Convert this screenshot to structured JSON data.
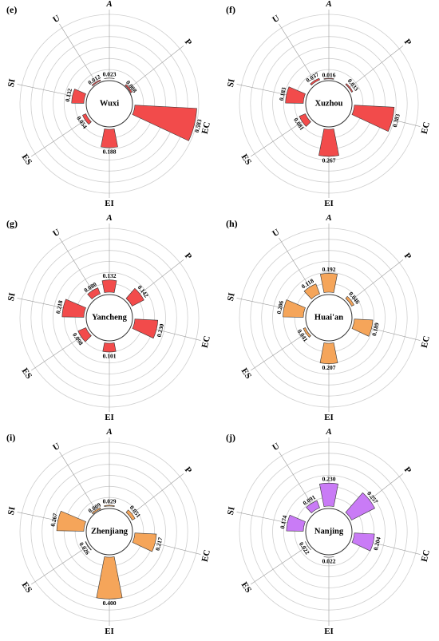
{
  "colors": {
    "red": "#f24b4b",
    "orange": "#f5a55a",
    "purple": "#c97bf6"
  },
  "chart_data": [
    {
      "type": "radial_bar",
      "panel": "(e)",
      "city": "Wuxi",
      "color": "#f24b4b",
      "categories": [
        "A",
        "P",
        "EC",
        "EI",
        "ES",
        "SI",
        "U"
      ],
      "values": [
        0.023,
        0.008,
        0.583,
        0.188,
        0.054,
        0.132,
        0.012
      ],
      "value_labels": [
        "0.023",
        "0.008",
        "0.583",
        "0.188",
        "0.054",
        "0.132",
        "0.012"
      ]
    },
    {
      "type": "radial_bar",
      "panel": "(f)",
      "city": "Xuzhou",
      "color": "#f24b4b",
      "categories": [
        "A",
        "P",
        "EC",
        "EI",
        "ES",
        "SI",
        "U"
      ],
      "values": [
        0.016,
        0.033,
        0.383,
        0.267,
        0.081,
        0.183,
        0.037
      ],
      "value_labels": [
        "0.016",
        "0.033",
        "0.383",
        "0.267",
        "0.081",
        "0.183",
        "0.037"
      ]
    },
    {
      "type": "radial_bar",
      "panel": "(g)",
      "city": "Yancheng",
      "color": "#f24b4b",
      "categories": [
        "A",
        "P",
        "EC",
        "EI",
        "ES",
        "SI",
        "U"
      ],
      "values": [
        0.132,
        0.142,
        0.23,
        0.101,
        0.098,
        0.218,
        0.08
      ],
      "value_labels": [
        "0.132",
        "0.142",
        "0.230",
        "0.101",
        "0.098",
        "0.218",
        "0.080"
      ]
    },
    {
      "type": "radial_bar",
      "panel": "(h)",
      "city": "Huai'an",
      "color": "#f5a55a",
      "categories": [
        "A",
        "P",
        "EC",
        "EI",
        "ES",
        "SI",
        "U"
      ],
      "values": [
        0.192,
        0.046,
        0.189,
        0.207,
        0.041,
        0.206,
        0.118
      ],
      "value_labels": [
        "0.192",
        "0.046",
        "0.189",
        "0.207",
        "0.041",
        "0.206",
        "0.118"
      ]
    },
    {
      "type": "radial_bar",
      "panel": "(i)",
      "city": "Zhenjiang",
      "color": "#f5a55a",
      "categories": [
        "A",
        "P",
        "EC",
        "EI",
        "ES",
        "SI",
        "U"
      ],
      "values": [
        0.029,
        0.051,
        0.217,
        0.4,
        0.026,
        0.267,
        0.009
      ],
      "value_labels": [
        "0.029",
        "0.051",
        "0.217",
        "0.400",
        "0.026",
        "0.267",
        "0.009"
      ]
    },
    {
      "type": "radial_bar",
      "panel": "(j)",
      "city": "Nanjing",
      "color": "#c97bf6",
      "categories": [
        "A",
        "P",
        "EC",
        "EI",
        "ES",
        "SI",
        "U"
      ],
      "values": [
        0.23,
        0.257,
        0.204,
        0.022,
        0.022,
        0.174,
        0.091
      ],
      "value_labels": [
        "0.230",
        "0.257",
        "0.204",
        "0.022",
        "0.022",
        "0.174",
        "0.091"
      ]
    }
  ]
}
